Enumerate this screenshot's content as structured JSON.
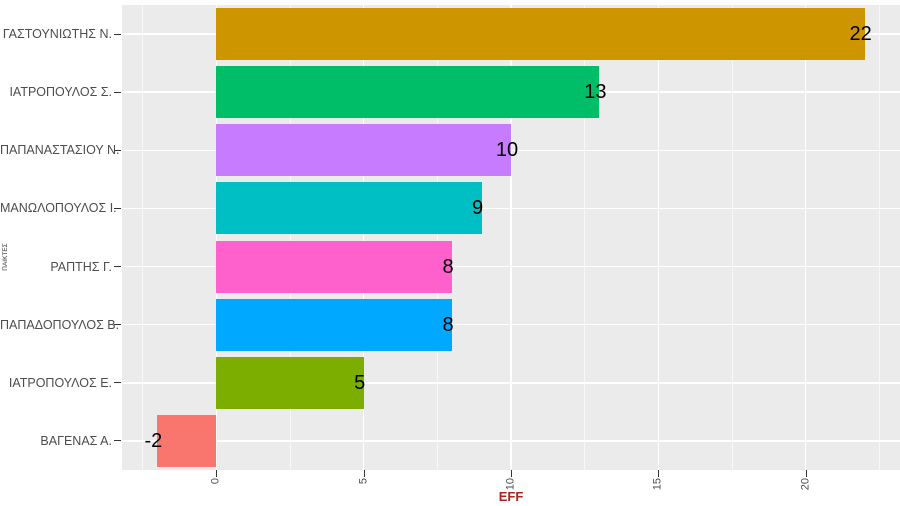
{
  "chart_data": {
    "type": "bar",
    "orientation": "horizontal",
    "title": "",
    "xlabel": "EFF",
    "ylabel": "ΠΑΙΚΤΕΣ",
    "categories": [
      "ΓΑΣΤΟΥΝΙΩΤΗΣ Ν.",
      "ΙΑΤΡΟΠΟΥΛΟΣ Σ.",
      "ΠΑΠΑΝΑΣΤΑΣΙΟΥ Ν.",
      "ΜΑΝΩΛΟΠΟΥΛΟΣ Ι.",
      "ΡΑΠΤΗΣ Γ.",
      "ΠΑΠΑΔΟΠΟΥΛΟΣ Β.",
      "ΙΑΤΡΟΠΟΥΛΟΣ Ε.",
      "ΒΑΓΕΝΑΣ Α."
    ],
    "values": [
      22,
      13,
      10,
      9,
      8,
      8,
      5,
      -2
    ],
    "bar_colors": [
      "#CD9600",
      "#00BE67",
      "#C77CFF",
      "#00BFC4",
      "#FF61CC",
      "#00A9FF",
      "#7CAE00",
      "#F8766D"
    ],
    "value_labels": [
      "22",
      "13",
      "10",
      "9",
      "8",
      "8",
      "5",
      "-2"
    ],
    "x_ticks": [
      0,
      5,
      10,
      15,
      20
    ],
    "x_ticks_minor": [
      -2.5,
      2.5,
      7.5,
      12.5,
      17.5,
      22.5
    ],
    "xlim": [
      -3.2,
      23.2
    ],
    "grid": true,
    "legend": "none",
    "panel_bg": "#EBEBEB",
    "grid_major_color": "#FFFFFF",
    "grid_minor_color": "#F7F7F7",
    "axis_text_color": "#4D4D4D",
    "xlabel_color": "#B22222",
    "value_label_color": "#000000"
  }
}
